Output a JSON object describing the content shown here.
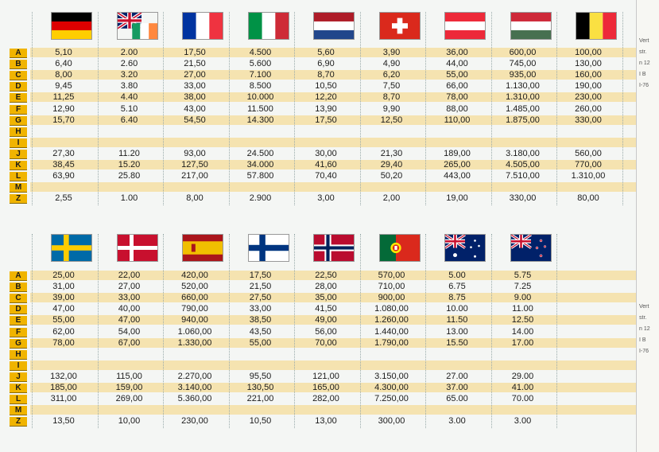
{
  "top": {
    "flags": [
      {
        "country": "Germany",
        "icon": "flag-germany-icon"
      },
      {
        "country": "United Kingdom / Ireland",
        "icon": "flag-uk-ireland-icon"
      },
      {
        "country": "France",
        "icon": "flag-france-icon"
      },
      {
        "country": "Italy",
        "icon": "flag-italy-icon"
      },
      {
        "country": "Netherlands",
        "icon": "flag-netherlands-icon"
      },
      {
        "country": "Switzerland",
        "icon": "flag-switzerland-icon"
      },
      {
        "country": "Austria",
        "icon": "flag-austria-icon"
      },
      {
        "country": "Hungary",
        "icon": "flag-hungary-icon"
      },
      {
        "country": "Belgium",
        "icon": "flag-belgium-icon"
      }
    ],
    "letters": [
      "A",
      "B",
      "C",
      "D",
      "E",
      "F",
      "G",
      "H",
      "I",
      "J",
      "K",
      "L",
      "M",
      "Z"
    ],
    "columns": [
      [
        "5,10",
        "6,40",
        "8,00",
        "9,45",
        "11,25",
        "12,90",
        "15,70",
        "",
        "",
        "27,30",
        "38,45",
        "63,90",
        "",
        "2,55"
      ],
      [
        "2.00",
        "2.60",
        "3.20",
        "3.80",
        "4.40",
        "5.10",
        "6.40",
        "",
        "",
        "11.20",
        "15.20",
        "25.80",
        "",
        "1.00"
      ],
      [
        "17,50",
        "21,50",
        "27,00",
        "33,00",
        "38,00",
        "43,00",
        "54,50",
        "",
        "",
        "93,00",
        "127,50",
        "217,00",
        "",
        "8,00"
      ],
      [
        "4.500",
        "5.600",
        "7.100",
        "8.500",
        "10.000",
        "11.500",
        "14.300",
        "",
        "",
        "24.500",
        "34.000",
        "57.800",
        "",
        "2.900"
      ],
      [
        "5,60",
        "6,90",
        "8,70",
        "10,50",
        "12,20",
        "13,90",
        "17,50",
        "",
        "",
        "30,00",
        "41,60",
        "70,40",
        "",
        "3,00"
      ],
      [
        "3,90",
        "4,90",
        "6,20",
        "7,50",
        "8,70",
        "9,90",
        "12,50",
        "",
        "",
        "21,30",
        "29,40",
        "50,20",
        "",
        "2,00"
      ],
      [
        "36,00",
        "44,00",
        "55,00",
        "66,00",
        "78,00",
        "88,00",
        "110,00",
        "",
        "",
        "189,00",
        "265,00",
        "443,00",
        "",
        "19,00"
      ],
      [
        "600,00",
        "745,00",
        "935,00",
        "1.130,00",
        "1.310,00",
        "1.485,00",
        "1.875,00",
        "",
        "",
        "3.180,00",
        "4.505,00",
        "7.510,00",
        "",
        "330,00"
      ],
      [
        "100,00",
        "130,00",
        "160,00",
        "190,00",
        "230,00",
        "260,00",
        "330,00",
        "",
        "",
        "560,00",
        "770,00",
        "1.310,00",
        "",
        "80,00"
      ]
    ]
  },
  "bottom": {
    "flags": [
      {
        "country": "Sweden",
        "icon": "flag-sweden-icon"
      },
      {
        "country": "Denmark",
        "icon": "flag-denmark-icon"
      },
      {
        "country": "Spain",
        "icon": "flag-spain-icon"
      },
      {
        "country": "Finland",
        "icon": "flag-finland-icon"
      },
      {
        "country": "Norway",
        "icon": "flag-norway-icon"
      },
      {
        "country": "Portugal",
        "icon": "flag-portugal-icon"
      },
      {
        "country": "Australia",
        "icon": "flag-australia-icon"
      },
      {
        "country": "New Zealand",
        "icon": "flag-new-zealand-icon"
      }
    ],
    "letters": [
      "A",
      "B",
      "C",
      "D",
      "E",
      "F",
      "G",
      "H",
      "I",
      "J",
      "K",
      "L",
      "M",
      "Z"
    ],
    "columns": [
      [
        "25,00",
        "31,00",
        "39,00",
        "47,00",
        "55,00",
        "62,00",
        "78,00",
        "",
        "",
        "132,00",
        "185,00",
        "311,00",
        "",
        "13,50"
      ],
      [
        "22,00",
        "27,00",
        "33,00",
        "40,00",
        "47,00",
        "54,00",
        "67,00",
        "",
        "",
        "115,00",
        "159,00",
        "269,00",
        "",
        "10,00"
      ],
      [
        "420,00",
        "520,00",
        "660,00",
        "790,00",
        "940,00",
        "1.060,00",
        "1.330,00",
        "",
        "",
        "2.270,00",
        "3.140,00",
        "5.360,00",
        "",
        "230,00"
      ],
      [
        "17,50",
        "21,50",
        "27,50",
        "33,00",
        "38,50",
        "43,50",
        "55,00",
        "",
        "",
        "95,50",
        "130,50",
        "221,00",
        "",
        "10,50"
      ],
      [
        "22,50",
        "28,00",
        "35,00",
        "41,50",
        "49,00",
        "56,00",
        "70,00",
        "",
        "",
        "121,00",
        "165,00",
        "282,00",
        "",
        "13,00"
      ],
      [
        "570,00",
        "710,00",
        "900,00",
        "1.080,00",
        "1.260,00",
        "1.440,00",
        "1.790,00",
        "",
        "",
        "3.150,00",
        "4.300,00",
        "7.250,00",
        "",
        "300,00"
      ],
      [
        "5.00",
        "6.75",
        "8.75",
        "10.00",
        "11.50",
        "13.00",
        "15.50",
        "",
        "",
        "27.00",
        "37.00",
        "65.00",
        "",
        "3.00"
      ],
      [
        "5.75",
        "7.25",
        "9.00",
        "11.00",
        "12.50",
        "14.00",
        "17.00",
        "",
        "",
        "29.00",
        "41.00",
        "70.00",
        "",
        "3.00"
      ]
    ]
  },
  "edge_text": [
    "Vert",
    "str.",
    "n 12",
    "I B",
    "I-76",
    "Vert",
    "str.",
    "n 12",
    "I B",
    "I-76"
  ],
  "colors": {
    "letter_bg": "#f0b400",
    "stripe": "#f5e3b0"
  }
}
